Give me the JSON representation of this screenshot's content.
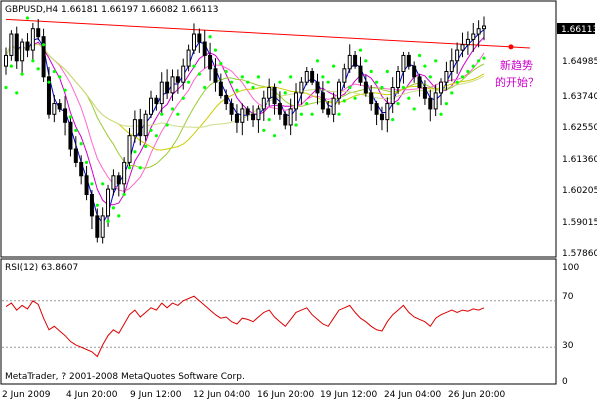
{
  "main": {
    "header": "GBPUSD,H4  1.66181 1.66197 1.66082 1.66113",
    "current_price": "1.66113",
    "annotation": [
      "新趋势",
      "的开始？"
    ],
    "price_labels": [
      "1.64985",
      "1.63740",
      "1.62550",
      "1.61360",
      "1.60205",
      "1.59015",
      "1.57860"
    ]
  },
  "rsi": {
    "header": "RSI(12) 63.8607",
    "levels": [
      "100",
      "70",
      "30",
      "0"
    ]
  },
  "copyright": "MetaTrader, ? 2001-2008 MetaQuotes Software Corp.",
  "time_labels": [
    "2 Jun 2009",
    "4 Jun 20:00",
    "9 Jun 12:00",
    "12 Jun 04:00",
    "16 Jun 20:00",
    "19 Jun 12:00",
    "24 Jun 04:00",
    "26 Jun 20:00"
  ],
  "colors": {
    "background": "#ffffff",
    "candle": "#000000",
    "parabolic_sar": "#00ff00",
    "trendline": "#ff0000",
    "rsi_line": "#dd0000",
    "annotation": "#cc00cc",
    "current_price_box": "#000000"
  },
  "chart_data": [
    {
      "type": "candlestick",
      "symbol": "GBPUSD",
      "timeframe": "H4",
      "ohlc": {
        "open": 1.66181,
        "high": 1.66197,
        "low": 1.66082,
        "close": 1.66113
      },
      "y_ticks": [
        1.64985,
        1.6374,
        1.6255,
        1.6136,
        1.60205,
        1.59015,
        1.5786
      ],
      "ylim": [
        1.5765,
        1.664
      ],
      "x_ticks": [
        "2 Jun 2009",
        "4 Jun 20:00",
        "9 Jun 12:00",
        "12 Jun 04:00",
        "16 Jun 20:00",
        "19 Jun 12:00",
        "24 Jun 04:00",
        "26 Jun 20:00"
      ],
      "overlays": [
        "parabolic SAR",
        "moving averages",
        "trendline"
      ],
      "close": [
        1.65,
        1.658,
        1.648,
        1.655,
        1.652,
        1.66,
        1.657,
        1.642,
        1.628,
        1.632,
        1.63,
        1.625,
        1.615,
        1.61,
        1.605,
        1.598,
        1.59,
        1.582,
        1.59,
        1.6,
        1.605,
        1.602,
        1.61,
        1.62,
        1.626,
        1.62,
        1.628,
        1.634,
        1.632,
        1.64,
        1.636,
        1.642,
        1.64,
        1.646,
        1.652,
        1.658,
        1.655,
        1.65,
        1.645,
        1.64,
        1.635,
        1.632,
        1.628,
        1.625,
        1.63,
        1.628,
        1.626,
        1.63,
        1.634,
        1.638,
        1.632,
        1.628,
        1.624,
        1.63,
        1.636,
        1.64,
        1.644,
        1.64,
        1.636,
        1.63,
        1.628,
        1.634,
        1.64,
        1.645,
        1.65,
        1.646,
        1.64,
        1.636,
        1.632,
        1.628,
        1.626,
        1.632,
        1.638,
        1.644,
        1.65,
        1.646,
        1.642,
        1.638,
        1.634,
        1.63,
        1.636,
        1.64,
        1.644,
        1.648,
        1.652,
        1.654,
        1.656,
        1.658,
        1.66,
        1.661
      ]
    },
    {
      "type": "line",
      "name": "RSI(12)",
      "ylim": [
        0,
        100
      ],
      "levels": [
        30,
        70
      ],
      "last_value": 63.8607,
      "values": [
        65,
        68,
        62,
        66,
        63,
        70,
        67,
        55,
        45,
        48,
        44,
        40,
        35,
        32,
        30,
        28,
        26,
        22,
        32,
        40,
        45,
        42,
        50,
        58,
        62,
        56,
        60,
        64,
        62,
        68,
        64,
        68,
        66,
        70,
        72,
        74,
        70,
        66,
        62,
        58,
        55,
        56,
        52,
        50,
        55,
        54,
        52,
        56,
        60,
        62,
        56,
        52,
        48,
        54,
        60,
        62,
        64,
        58,
        54,
        50,
        48,
        55,
        62,
        64,
        66,
        60,
        55,
        52,
        48,
        45,
        44,
        52,
        58,
        62,
        66,
        60,
        56,
        54,
        52,
        48,
        55,
        58,
        60,
        62,
        60,
        62,
        61,
        63,
        62,
        64
      ]
    }
  ]
}
